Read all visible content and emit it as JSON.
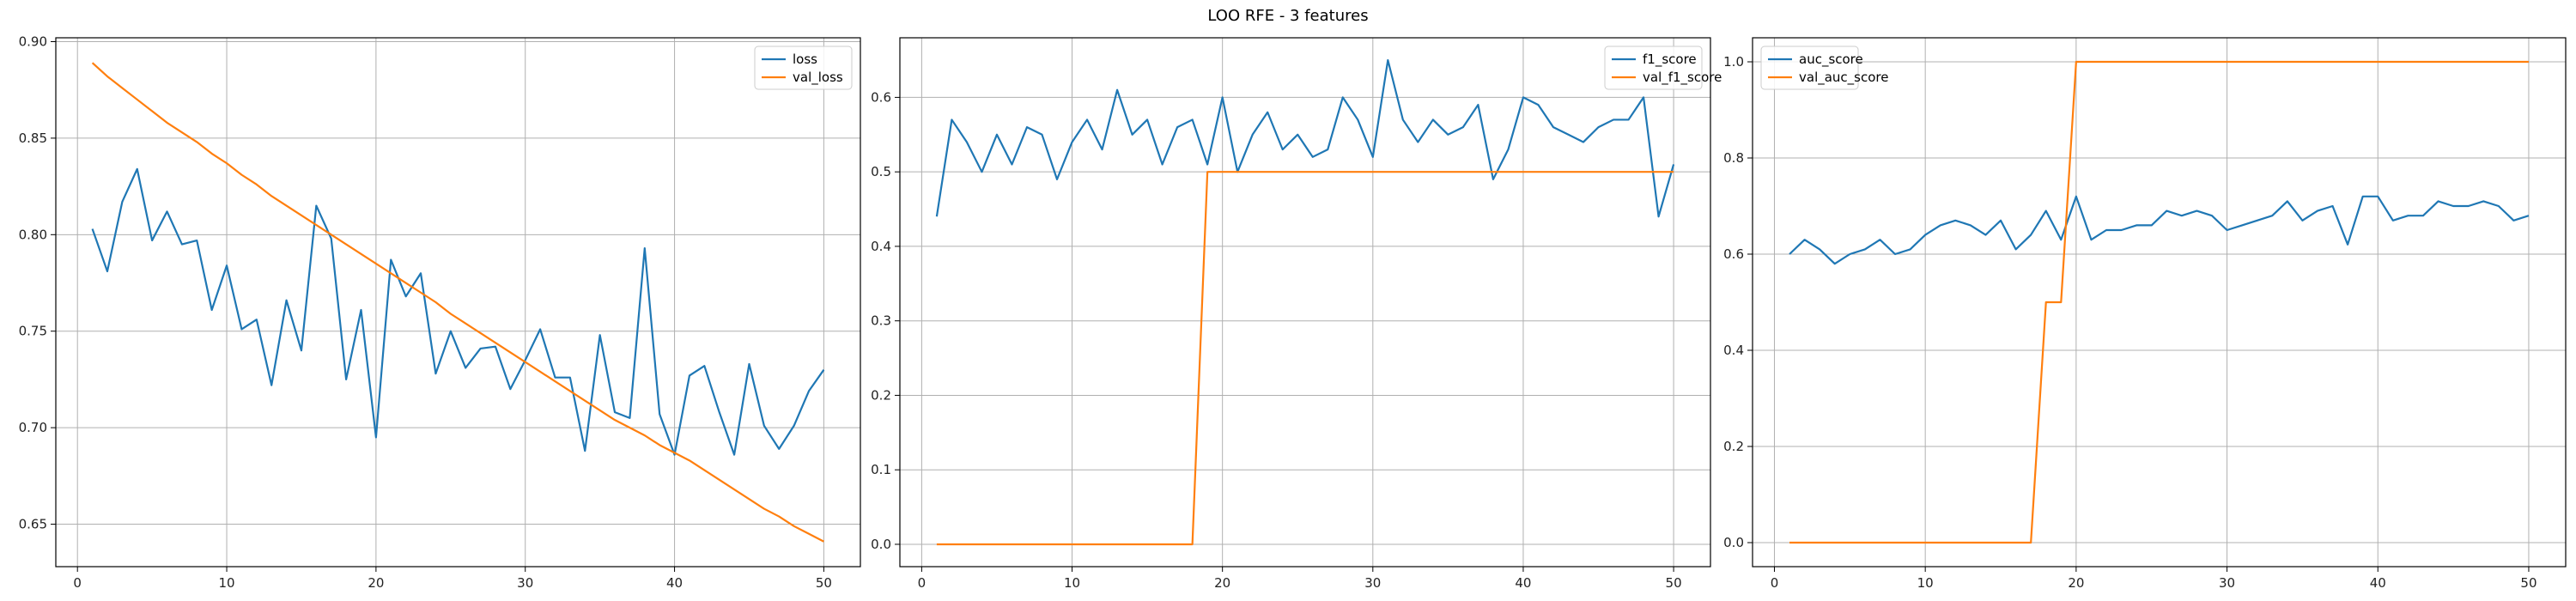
{
  "figure": {
    "title": "LOO RFE - 3 features"
  },
  "colors": {
    "series1": "#1f77b4",
    "series2": "#ff7f0e",
    "grid": "#b0b0b0",
    "axis": "#000000"
  },
  "chart_data": [
    {
      "type": "line",
      "title": "",
      "xlabel": "",
      "ylabel": "",
      "grid": true,
      "legend_position": "top-right",
      "xlim": [
        -1.45,
        52.45
      ],
      "ylim": [
        0.628,
        0.902
      ],
      "xticks": [
        0,
        10,
        20,
        30,
        40,
        50
      ],
      "yticks": [
        0.65,
        0.7,
        0.75,
        0.8,
        0.85,
        0.9
      ],
      "ytick_labels": [
        "0.65",
        "0.70",
        "0.75",
        "0.80",
        "0.85",
        "0.90"
      ],
      "x": [
        1,
        2,
        3,
        4,
        5,
        6,
        7,
        8,
        9,
        10,
        11,
        12,
        13,
        14,
        15,
        16,
        17,
        18,
        19,
        20,
        21,
        22,
        23,
        24,
        25,
        26,
        27,
        28,
        29,
        30,
        31,
        32,
        33,
        34,
        35,
        36,
        37,
        38,
        39,
        40,
        41,
        42,
        43,
        44,
        45,
        46,
        47,
        48,
        49,
        50
      ],
      "series": [
        {
          "name": "loss",
          "values": [
            0.803,
            0.781,
            0.817,
            0.834,
            0.797,
            0.812,
            0.795,
            0.797,
            0.761,
            0.784,
            0.751,
            0.756,
            0.722,
            0.766,
            0.74,
            0.815,
            0.798,
            0.725,
            0.761,
            0.695,
            0.787,
            0.768,
            0.78,
            0.728,
            0.75,
            0.731,
            0.741,
            0.742,
            0.72,
            0.735,
            0.751,
            0.726,
            0.726,
            0.688,
            0.748,
            0.708,
            0.705,
            0.793,
            0.707,
            0.686,
            0.727,
            0.732,
            0.708,
            0.686,
            0.733,
            0.701,
            0.689,
            0.701,
            0.719,
            0.73
          ]
        },
        {
          "name": "val_loss",
          "values": [
            0.889,
            0.882,
            0.876,
            0.87,
            0.864,
            0.858,
            0.853,
            0.848,
            0.842,
            0.837,
            0.831,
            0.826,
            0.82,
            0.815,
            0.81,
            0.805,
            0.8,
            0.795,
            0.79,
            0.785,
            0.78,
            0.775,
            0.77,
            0.765,
            0.759,
            0.754,
            0.749,
            0.744,
            0.739,
            0.734,
            0.729,
            0.724,
            0.719,
            0.714,
            0.709,
            0.704,
            0.7,
            0.696,
            0.691,
            0.687,
            0.683,
            0.678,
            0.673,
            0.668,
            0.663,
            0.658,
            0.654,
            0.649,
            0.645,
            0.641
          ]
        }
      ]
    },
    {
      "type": "line",
      "title": "",
      "xlabel": "",
      "ylabel": "",
      "grid": true,
      "legend_position": "top-right",
      "xlim": [
        -1.45,
        52.45
      ],
      "ylim": [
        -0.03,
        0.68
      ],
      "xticks": [
        0,
        10,
        20,
        30,
        40,
        50
      ],
      "yticks": [
        0.0,
        0.1,
        0.2,
        0.3,
        0.4,
        0.5,
        0.6
      ],
      "ytick_labels": [
        "0.0",
        "0.1",
        "0.2",
        "0.3",
        "0.4",
        "0.5",
        "0.6"
      ],
      "x": [
        1,
        2,
        3,
        4,
        5,
        6,
        7,
        8,
        9,
        10,
        11,
        12,
        13,
        14,
        15,
        16,
        17,
        18,
        19,
        20,
        21,
        22,
        23,
        24,
        25,
        26,
        27,
        28,
        29,
        30,
        31,
        32,
        33,
        34,
        35,
        36,
        37,
        38,
        39,
        40,
        41,
        42,
        43,
        44,
        45,
        46,
        47,
        48,
        49,
        50
      ],
      "series": [
        {
          "name": "f1_score",
          "values": [
            0.44,
            0.57,
            0.54,
            0.5,
            0.55,
            0.51,
            0.56,
            0.55,
            0.49,
            0.54,
            0.57,
            0.53,
            0.61,
            0.55,
            0.57,
            0.51,
            0.56,
            0.57,
            0.51,
            0.6,
            0.5,
            0.55,
            0.58,
            0.53,
            0.55,
            0.52,
            0.53,
            0.6,
            0.57,
            0.52,
            0.65,
            0.57,
            0.54,
            0.57,
            0.55,
            0.56,
            0.59,
            0.49,
            0.53,
            0.6,
            0.59,
            0.56,
            0.55,
            0.54,
            0.56,
            0.57,
            0.57,
            0.6,
            0.44,
            0.51
          ]
        },
        {
          "name": "val_f1_score",
          "values": [
            0,
            0,
            0,
            0,
            0,
            0,
            0,
            0,
            0,
            0,
            0,
            0,
            0,
            0,
            0,
            0,
            0,
            0,
            0.5,
            0.5,
            0.5,
            0.5,
            0.5,
            0.5,
            0.5,
            0.5,
            0.5,
            0.5,
            0.5,
            0.5,
            0.5,
            0.5,
            0.5,
            0.5,
            0.5,
            0.5,
            0.5,
            0.5,
            0.5,
            0.5,
            0.5,
            0.5,
            0.5,
            0.5,
            0.5,
            0.5,
            0.5,
            0.5,
            0.5,
            0.5
          ]
        }
      ]
    },
    {
      "type": "line",
      "title": "",
      "xlabel": "",
      "ylabel": "",
      "grid": true,
      "legend_position": "top-left",
      "xlim": [
        -1.45,
        52.45
      ],
      "ylim": [
        -0.05,
        1.05
      ],
      "xticks": [
        0,
        10,
        20,
        30,
        40,
        50
      ],
      "yticks": [
        0.0,
        0.2,
        0.4,
        0.6,
        0.8,
        1.0
      ],
      "ytick_labels": [
        "0.0",
        "0.2",
        "0.4",
        "0.6",
        "0.8",
        "1.0"
      ],
      "x": [
        1,
        2,
        3,
        4,
        5,
        6,
        7,
        8,
        9,
        10,
        11,
        12,
        13,
        14,
        15,
        16,
        17,
        18,
        19,
        20,
        21,
        22,
        23,
        24,
        25,
        26,
        27,
        28,
        29,
        30,
        31,
        32,
        33,
        34,
        35,
        36,
        37,
        38,
        39,
        40,
        41,
        42,
        43,
        44,
        45,
        46,
        47,
        48,
        49,
        50
      ],
      "series": [
        {
          "name": "auc_score",
          "values": [
            0.6,
            0.63,
            0.61,
            0.58,
            0.6,
            0.61,
            0.63,
            0.6,
            0.61,
            0.64,
            0.66,
            0.67,
            0.66,
            0.64,
            0.67,
            0.61,
            0.64,
            0.69,
            0.63,
            0.72,
            0.63,
            0.65,
            0.65,
            0.66,
            0.66,
            0.69,
            0.68,
            0.69,
            0.68,
            0.65,
            0.66,
            0.67,
            0.68,
            0.71,
            0.67,
            0.69,
            0.7,
            0.62,
            0.72,
            0.72,
            0.67,
            0.68,
            0.68,
            0.71,
            0.7,
            0.7,
            0.71,
            0.7,
            0.67,
            0.68
          ]
        },
        {
          "name": "val_auc_score",
          "values": [
            0,
            0,
            0,
            0,
            0,
            0,
            0,
            0,
            0,
            0,
            0,
            0,
            0,
            0,
            0,
            0,
            0,
            0.5,
            0.5,
            1,
            1,
            1,
            1,
            1,
            1,
            1,
            1,
            1,
            1,
            1,
            1,
            1,
            1,
            1,
            1,
            1,
            1,
            1,
            1,
            1,
            1,
            1,
            1,
            1,
            1,
            1,
            1,
            1,
            1,
            1
          ]
        }
      ]
    }
  ]
}
